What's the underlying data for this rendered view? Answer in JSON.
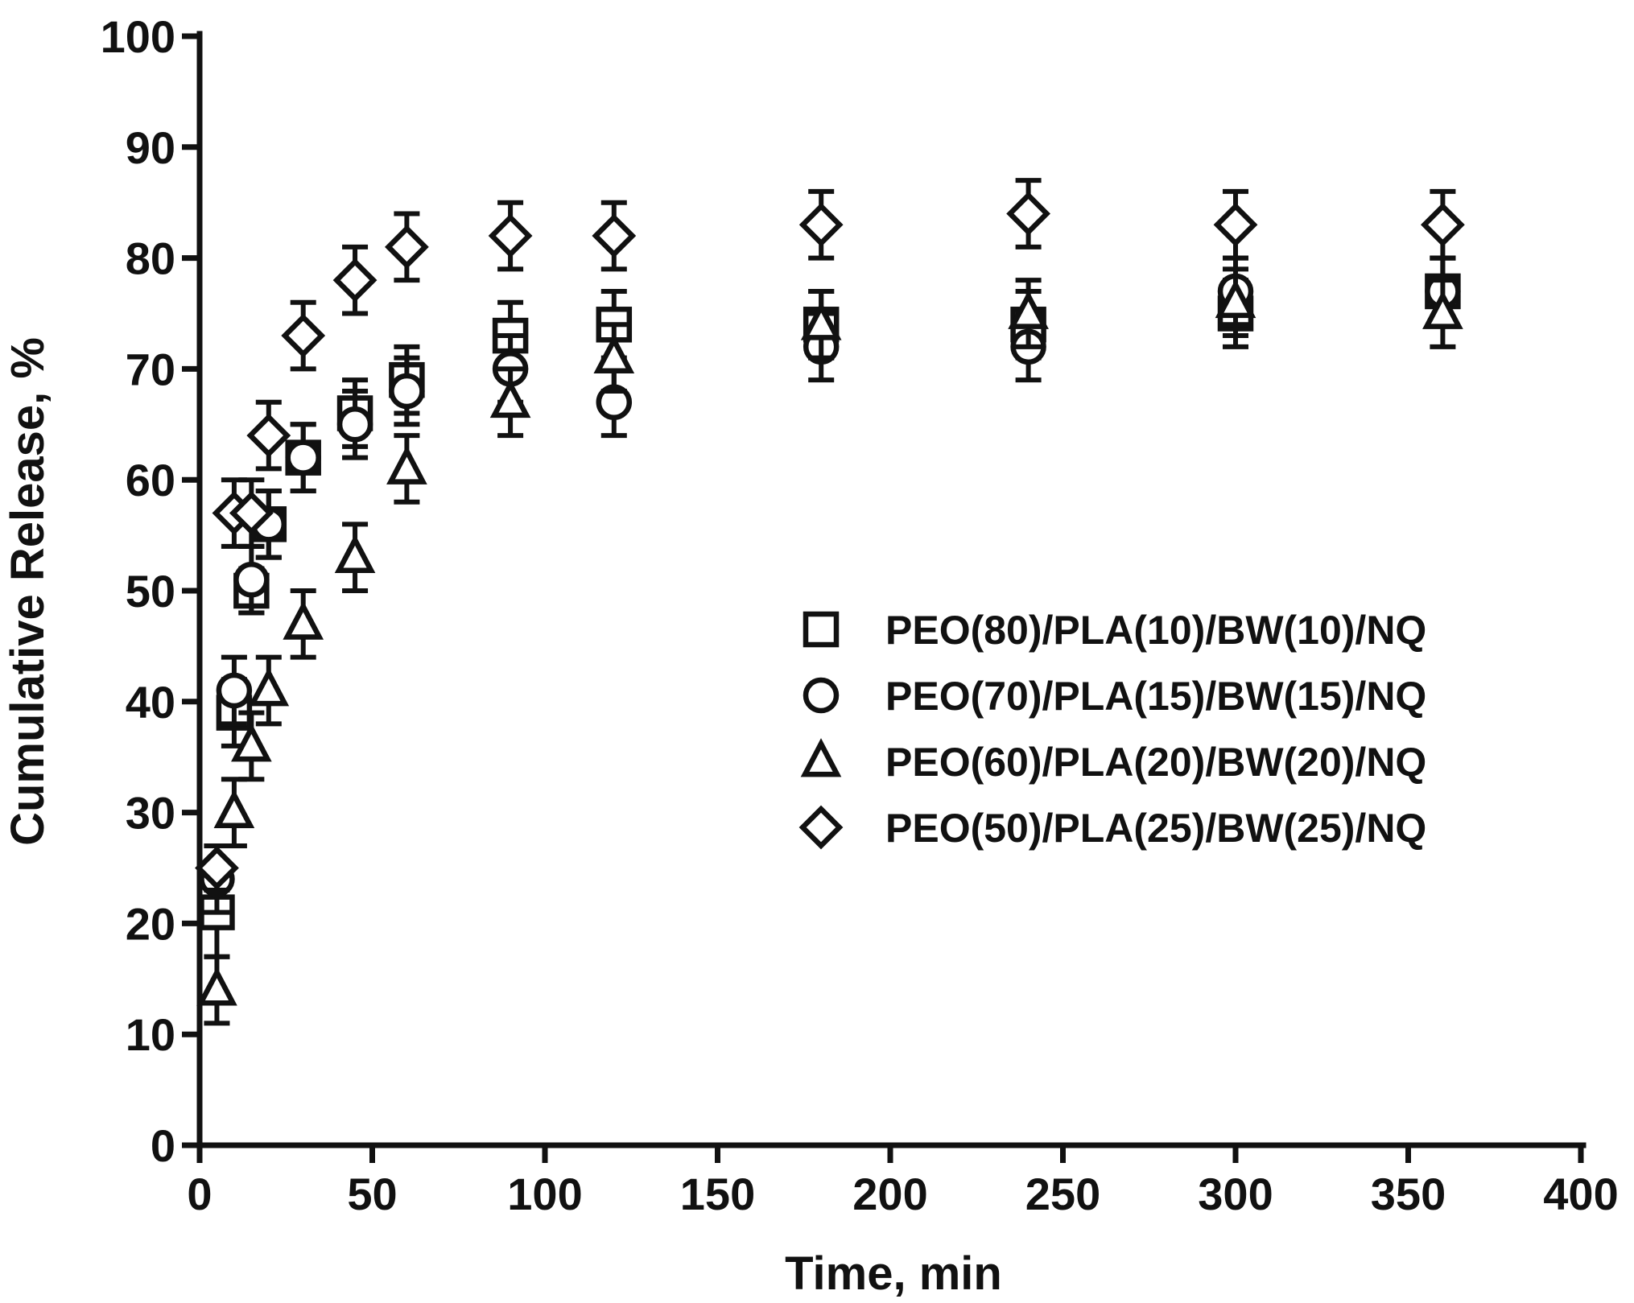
{
  "chart_data": {
    "type": "scatter",
    "xlabel": "Time, min",
    "ylabel": "Cumulative Release, %",
    "xlim": [
      0,
      400
    ],
    "ylim": [
      0,
      100
    ],
    "xticks": [
      "0",
      "50",
      "100",
      "150",
      "200",
      "250",
      "300",
      "350",
      "400"
    ],
    "yticks": [
      "0",
      "10",
      "20",
      "30",
      "40",
      "50",
      "60",
      "70",
      "80",
      "90",
      "100"
    ],
    "grid": false,
    "legend_position": "center-right",
    "x": [
      5,
      10,
      15,
      20,
      30,
      45,
      60,
      90,
      120,
      180,
      240,
      300,
      360
    ],
    "series": [
      {
        "name": "PEO(80)/PLA(10)/BW(10)/NQ",
        "marker": "square",
        "values": [
          21,
          39,
          50,
          56,
          62,
          66,
          69,
          73,
          74,
          74,
          74,
          75,
          77
        ],
        "errors": [
          4,
          3,
          2,
          3,
          3,
          3,
          3,
          3,
          3,
          3,
          3,
          3,
          3
        ]
      },
      {
        "name": "PEO(70)/PLA(15)/BW(15)/NQ",
        "marker": "circle",
        "values": [
          24,
          41,
          51,
          56,
          62,
          65,
          68,
          70,
          67,
          72,
          72,
          77,
          77
        ],
        "errors": [
          3,
          3,
          3,
          3,
          3,
          3,
          3,
          3,
          3,
          3,
          3,
          3,
          3
        ]
      },
      {
        "name": "PEO(60)/PLA(20)/BW(20)/NQ",
        "marker": "triangle",
        "values": [
          14,
          30,
          36,
          41,
          47,
          53,
          61,
          67,
          71,
          74,
          75,
          76,
          75
        ],
        "errors": [
          3,
          3,
          3,
          3,
          3,
          3,
          3,
          3,
          3,
          3,
          3,
          3,
          3
        ]
      },
      {
        "name": "PEO(50)/PLA(25)/BW(25)/NQ",
        "marker": "diamond",
        "values": [
          25,
          57,
          57,
          64,
          73,
          78,
          81,
          82,
          82,
          83,
          84,
          83,
          83
        ],
        "errors": [
          2,
          3,
          3,
          3,
          3,
          3,
          3,
          3,
          3,
          3,
          3,
          3,
          3
        ]
      }
    ]
  }
}
